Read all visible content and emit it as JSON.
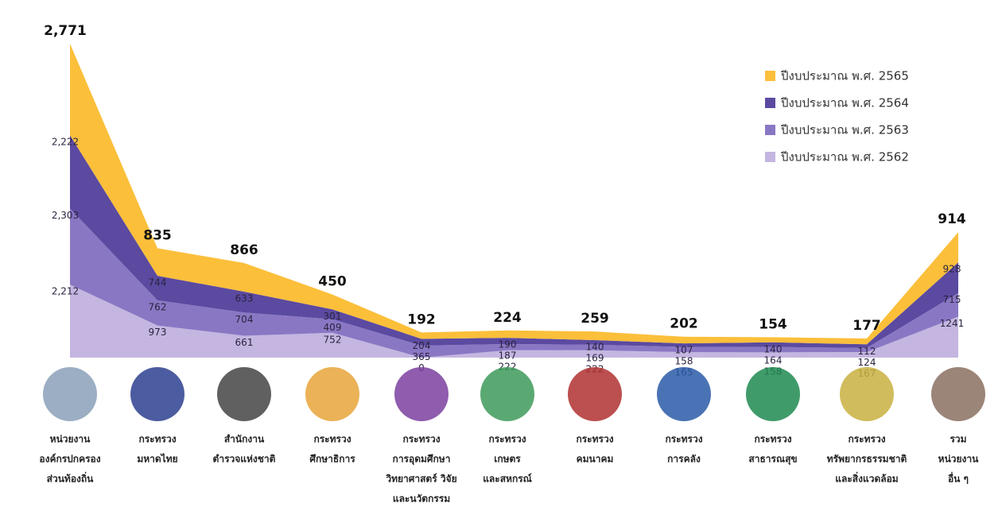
{
  "chart_data": {
    "type": "stacked-area",
    "categories": [
      [
        "หน่วยงาน",
        "องค์กรปกครอง",
        "ส่วนท้องถิ่น"
      ],
      [
        "กระทรวง",
        "มหาดไทย"
      ],
      [
        "สำนักงาน",
        "ตำรวจแห่งชาติ"
      ],
      [
        "กระทรวง",
        "ศึกษาธิการ"
      ],
      [
        "กระทรวง",
        "การอุดมศึกษา",
        "วิทยาศาสตร์ วิจัย",
        "และนวัตกรรม"
      ],
      [
        "กระทรวง",
        "เกษตร",
        "และสหกรณ์"
      ],
      [
        "กระทรวง",
        "คมนาคม"
      ],
      [
        "กระทรวง",
        "การคลัง"
      ],
      [
        "กระทรวง",
        "สาธารณสุข"
      ],
      [
        "กระทรวง",
        "ทรัพยากรธรรมชาติ",
        "และสิ่งแวดล้อม"
      ],
      [
        "รวม",
        "หน่วยงาน",
        "อื่น ๆ"
      ]
    ],
    "series": [
      {
        "name": "ปีงบประมาณ พ.ศ. 2565",
        "color": "#fbbf3a",
        "values": [
          2771,
          835,
          866,
          450,
          192,
          224,
          259,
          202,
          154,
          177,
          914
        ],
        "value_labels": [
          "2,771",
          "835",
          "866",
          "450",
          "192",
          "224",
          "259",
          "202",
          "154",
          "177",
          "914"
        ]
      },
      {
        "name": "ปีงบประมาณ พ.ศ. 2564",
        "color": "#5b4aa0",
        "values": [
          2222,
          744,
          633,
          301,
          204,
          190,
          140,
          107,
          140,
          112,
          928
        ],
        "value_labels": [
          "2,222",
          "744",
          "633",
          "301",
          "204",
          "190",
          "140",
          "107",
          "140",
          "112",
          "928"
        ]
      },
      {
        "name": "ปีงบประมาณ พ.ศ. 2563",
        "color": "#8a77c4",
        "values": [
          2303,
          762,
          704,
          409,
          365,
          187,
          169,
          158,
          164,
          124,
          715
        ],
        "value_labels": [
          "2,303",
          "762",
          "704",
          "409",
          "365",
          "187",
          "169",
          "158",
          "164",
          "124",
          "715"
        ]
      },
      {
        "name": "ปีงบประมาณ พ.ศ. 2562",
        "color": "#c4b6e0",
        "values": [
          2212,
          973,
          661,
          752,
          0,
          222,
          222,
          165,
          158,
          167,
          1241
        ],
        "value_labels": [
          "2,212",
          "973",
          "661",
          "752",
          "0",
          "222",
          "222",
          "165",
          "158",
          "167",
          "1241"
        ]
      }
    ],
    "legend": "top-right"
  }
}
